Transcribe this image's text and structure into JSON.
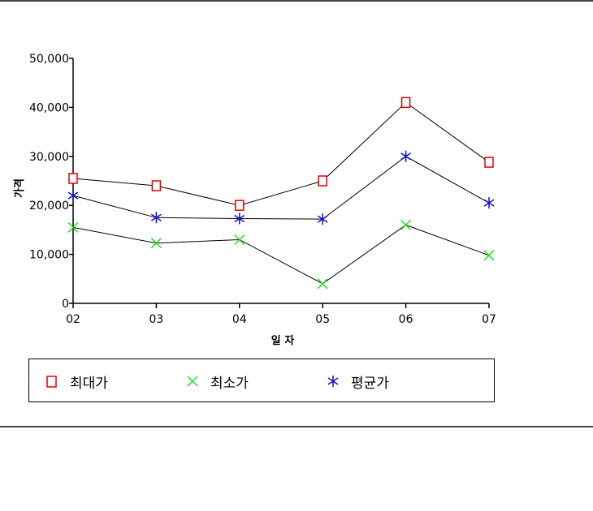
{
  "chart_data": {
    "type": "line",
    "title": "",
    "xlabel": "일 자",
    "ylabel": "가격",
    "categories": [
      "02",
      "03",
      "04",
      "05",
      "06",
      "07"
    ],
    "ylim": [
      0,
      50000
    ],
    "yticks": [
      "0",
      "10,000",
      "20,000",
      "30,000",
      "40,000",
      "50,000"
    ],
    "grid": false,
    "legend_position": "bottom",
    "series": [
      {
        "name": "최대가",
        "marker": "square",
        "color": "#e00000",
        "values": [
          25500,
          24000,
          20000,
          25000,
          41000,
          28800
        ]
      },
      {
        "name": "최소가",
        "marker": "x",
        "color": "#22dd22",
        "values": [
          15500,
          12300,
          13000,
          4000,
          16000,
          9800
        ]
      },
      {
        "name": "평균가",
        "marker": "asterisk",
        "color": "#1010d0",
        "values": [
          22000,
          17500,
          17300,
          17200,
          30000,
          20500
        ]
      }
    ]
  }
}
